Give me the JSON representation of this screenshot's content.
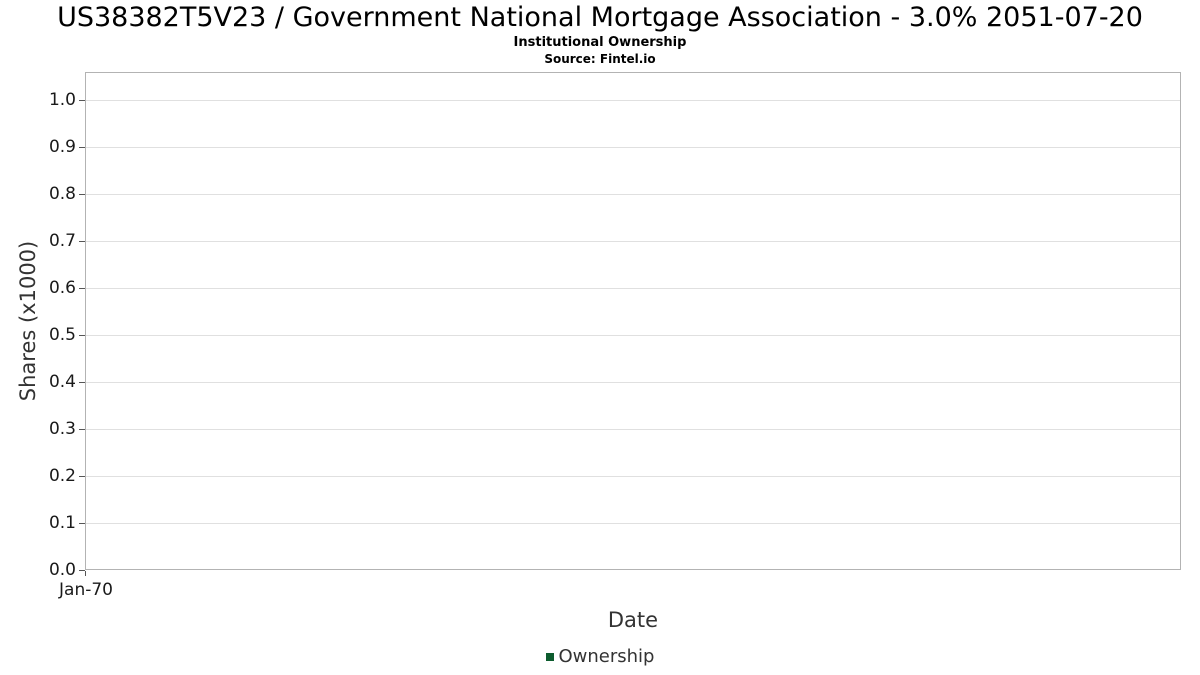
{
  "chart_data": {
    "type": "line",
    "title": "US38382T5V23 / Government National Mortgage Association - 3.0% 2051-07-20",
    "subtitle": "Institutional Ownership",
    "source": "Source: Fintel.io",
    "xlabel": "Date",
    "ylabel": "Shares (x1000)",
    "x_tick_labels": [
      "Jan-70"
    ],
    "y_ticks": [
      {
        "label": "1.0",
        "value": 1.0
      },
      {
        "label": "0.9",
        "value": 0.9
      },
      {
        "label": "0.8",
        "value": 0.8
      },
      {
        "label": "0.7",
        "value": 0.7
      },
      {
        "label": "0.6",
        "value": 0.6
      },
      {
        "label": "0.5",
        "value": 0.5
      },
      {
        "label": "0.4",
        "value": 0.4
      },
      {
        "label": "0.3",
        "value": 0.3
      },
      {
        "label": "0.2",
        "value": 0.2
      },
      {
        "label": "0.1",
        "value": 0.1
      },
      {
        "label": "0.0",
        "value": 0.0
      }
    ],
    "ylim": [
      0.0,
      1.06
    ],
    "grid": true,
    "legend": {
      "position": "bottom",
      "entries": [
        {
          "label": "Ownership",
          "color": "#0d5c2e"
        }
      ]
    },
    "series": [
      {
        "name": "Ownership",
        "x": [],
        "values": []
      }
    ]
  },
  "colors": {
    "grid": "#e0e0e0",
    "plot_border": "#b3b3b3",
    "axis_text": "#333333",
    "tick_text": "#1a1a1a"
  }
}
